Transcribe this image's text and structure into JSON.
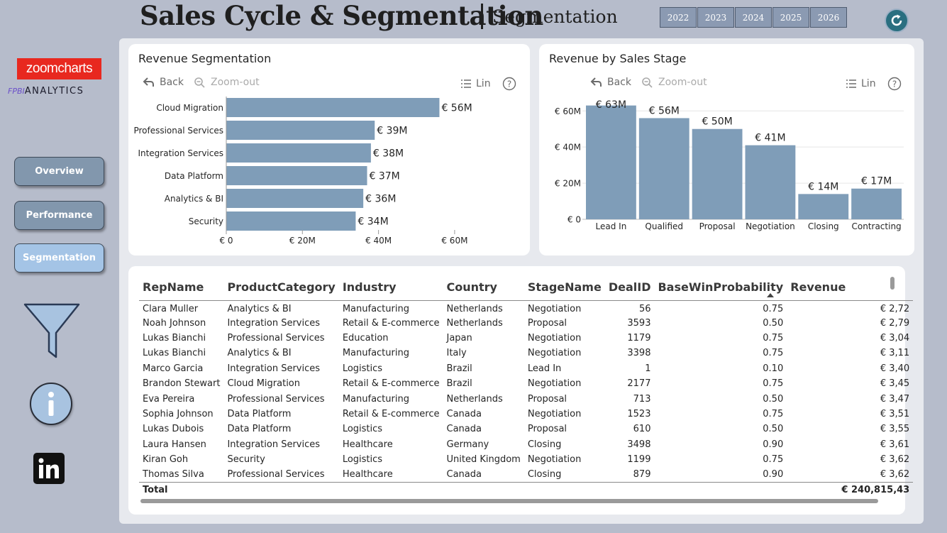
{
  "header": {
    "title": "Sales Cycle & Segmentation",
    "subtitle": "Segmentation",
    "years": [
      "2022",
      "2023",
      "2024",
      "2025",
      "2026"
    ]
  },
  "sidebar": {
    "logo_zoom": "zoomcharts",
    "logo_analytics_prefix": "FPBI",
    "logo_analytics": "ANALYTICS",
    "nav": [
      {
        "label": "Overview",
        "active": false
      },
      {
        "label": "Performance",
        "active": false
      },
      {
        "label": "Segmentation",
        "active": true
      }
    ]
  },
  "toolbar": {
    "back": "Back",
    "zoom_out": "Zoom-out",
    "scale": "Lin",
    "help": "?"
  },
  "segmentation_chart": {
    "title": "Revenue Segmentation"
  },
  "stage_chart": {
    "title": "Revenue by Sales Stage"
  },
  "chart_data": [
    {
      "type": "bar",
      "orientation": "horizontal",
      "title": "Revenue Segmentation",
      "categories": [
        "Cloud Migration",
        "Professional Services",
        "Integration Services",
        "Data Platform",
        "Analytics & BI",
        "Security"
      ],
      "values": [
        56,
        39,
        38,
        37,
        36,
        34
      ],
      "value_labels": [
        "€ 56M",
        "€ 39M",
        "€ 38M",
        "€ 37M",
        "€ 36M",
        "€ 34M"
      ],
      "xticks": [
        "€ 0",
        "€ 20M",
        "€ 40M",
        "€ 60M"
      ],
      "xlim": [
        0,
        63
      ],
      "grid": false,
      "color": "#7f9db8"
    },
    {
      "type": "bar",
      "orientation": "vertical",
      "title": "Revenue by Sales Stage",
      "categories": [
        "Lead In",
        "Qualified",
        "Proposal",
        "Negotiation",
        "Closing",
        "Contracting"
      ],
      "values": [
        63,
        56,
        50,
        41,
        14,
        17
      ],
      "value_labels": [
        "€ 63M",
        "€ 56M",
        "€ 50M",
        "€ 41M",
        "€ 14M",
        "€ 17M"
      ],
      "yticks": [
        "€ 0",
        "€ 20M",
        "€ 40M",
        "€ 60M"
      ],
      "ylim": [
        0,
        66
      ],
      "grid": true,
      "color": "#7f9db8"
    }
  ],
  "table": {
    "columns": [
      "RepName",
      "ProductCategory",
      "Industry",
      "Country",
      "StageName",
      "DealID",
      "BaseWinProbability",
      "Revenue"
    ],
    "rows": [
      [
        "Clara Muller",
        "Analytics & BI",
        "Manufacturing",
        "Netherlands",
        "Negotiation",
        "56",
        "0.75",
        "€ 2,72"
      ],
      [
        "Noah Johnson",
        "Integration Services",
        "Retail & E-commerce",
        "Netherlands",
        "Proposal",
        "3593",
        "0.50",
        "€ 2,79"
      ],
      [
        "Lukas Bianchi",
        "Professional Services",
        "Education",
        "Japan",
        "Negotiation",
        "1179",
        "0.75",
        "€ 3,04"
      ],
      [
        "Lukas Bianchi",
        "Analytics & BI",
        "Manufacturing",
        "Italy",
        "Negotiation",
        "3398",
        "0.75",
        "€ 3,11"
      ],
      [
        "Marco Garcia",
        "Integration Services",
        "Logistics",
        "Brazil",
        "Lead In",
        "1",
        "0.10",
        "€ 3,40"
      ],
      [
        "Brandon Stewart",
        "Cloud Migration",
        "Retail & E-commerce",
        "Brazil",
        "Negotiation",
        "2177",
        "0.75",
        "€ 3,45"
      ],
      [
        "Eva Pereira",
        "Professional Services",
        "Manufacturing",
        "Netherlands",
        "Proposal",
        "713",
        "0.50",
        "€ 3,47"
      ],
      [
        "Sophia Johnson",
        "Data Platform",
        "Retail & E-commerce",
        "Canada",
        "Negotiation",
        "1523",
        "0.75",
        "€ 3,51"
      ],
      [
        "Lukas Dubois",
        "Data Platform",
        "Logistics",
        "Canada",
        "Proposal",
        "610",
        "0.50",
        "€ 3,55"
      ],
      [
        "Laura Hansen",
        "Integration Services",
        "Healthcare",
        "Germany",
        "Closing",
        "3498",
        "0.90",
        "€ 3,61"
      ],
      [
        "Kiran Goh",
        "Security",
        "Logistics",
        "United Kingdom",
        "Negotiation",
        "1199",
        "0.75",
        "€ 3,62"
      ],
      [
        "Thomas Silva",
        "Professional Services",
        "Healthcare",
        "Canada",
        "Closing",
        "879",
        "0.90",
        "€ 3,62"
      ]
    ],
    "total_label": "Total",
    "total_value": "€ 240,815,43"
  }
}
